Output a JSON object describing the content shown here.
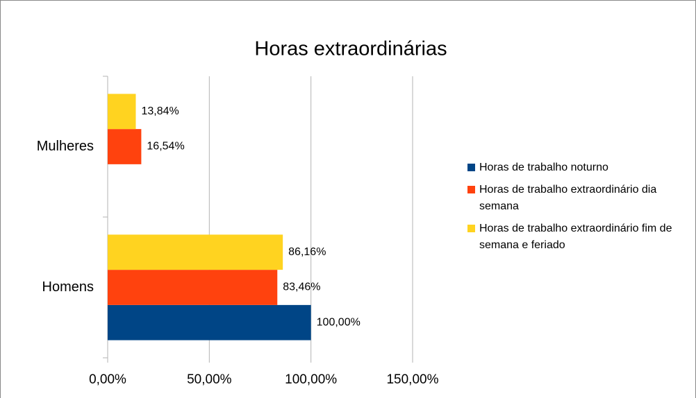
{
  "chart_data": {
    "type": "bar",
    "orientation": "horizontal",
    "title": "Horas extraordinárias",
    "categories": [
      "Homens",
      "Mulheres"
    ],
    "series": [
      {
        "name": "Horas de trabalho noturno",
        "color": "#004586",
        "values": [
          100,
          null
        ],
        "value_labels": [
          "100,00%",
          null
        ]
      },
      {
        "name": "Horas de trabalho extraordinário dia semana",
        "color": "#ff420e",
        "values": [
          83.46,
          16.54
        ],
        "value_labels": [
          "83,46%",
          "16,54%"
        ]
      },
      {
        "name": "Horas de trabalho extraordinário fim de semana e feriado",
        "color": "#ffd320",
        "values": [
          86.16,
          13.84
        ],
        "value_labels": [
          "86,16%",
          "13,84%"
        ]
      }
    ],
    "xlim": [
      0,
      150
    ],
    "xticks": [
      {
        "value": 0,
        "label": "0,00%"
      },
      {
        "value": 50,
        "label": "50,00%"
      },
      {
        "value": 100,
        "label": "100,00%"
      },
      {
        "value": 150,
        "label": "150,00%"
      }
    ],
    "grid": true,
    "legend": "right"
  }
}
